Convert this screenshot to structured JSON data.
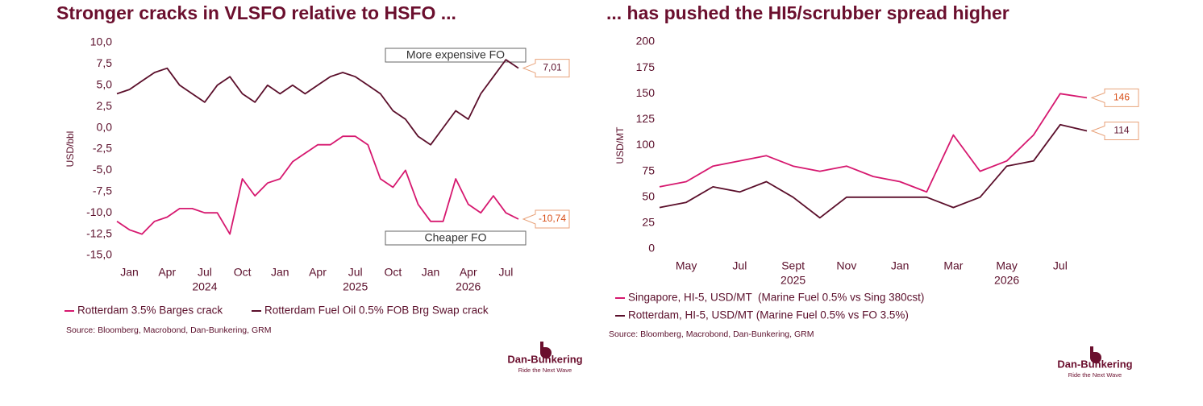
{
  "chart_data": [
    {
      "type": "line",
      "title": "Stronger cracks in VLSFO relative to HSFO ...",
      "y_label": "USD/bbl",
      "x": [
        "2023-12",
        "2024-01",
        "2024-02",
        "2024-03",
        "2024-04",
        "2024-05",
        "2024-06",
        "2024-07",
        "2024-08",
        "2024-09",
        "2024-10",
        "2024-11",
        "2024-12",
        "2025-01",
        "2025-02",
        "2025-03",
        "2025-04",
        "2025-05",
        "2025-06",
        "2025-07",
        "2025-08",
        "2025-09",
        "2025-10",
        "2025-11",
        "2025-12",
        "2026-01",
        "2026-02",
        "2026-03",
        "2026-04",
        "2026-05",
        "2026-06",
        "2026-07",
        "2026-08"
      ],
      "xlim": [
        "2023-12",
        "2026-08"
      ],
      "xticks": [
        {
          "value": "2024-01",
          "label": "Jan"
        },
        {
          "value": "2024-04",
          "label": "Apr"
        },
        {
          "value": "2024-07",
          "label": "Jul"
        },
        {
          "value": "2024-10",
          "label": "Oct"
        },
        {
          "value": "2025-01",
          "label": "Jan"
        },
        {
          "value": "2025-04",
          "label": "Apr"
        },
        {
          "value": "2025-07",
          "label": "Jul"
        },
        {
          "value": "2025-10",
          "label": "Oct"
        },
        {
          "value": "2026-01",
          "label": "Jan"
        },
        {
          "value": "2026-04",
          "label": "Apr"
        },
        {
          "value": "2026-07",
          "label": "Jul"
        }
      ],
      "year_ticks": [
        {
          "value": "2024-07",
          "label": "2024"
        },
        {
          "value": "2025-07",
          "label": "2025"
        },
        {
          "value": "2026-04",
          "label": "2026"
        }
      ],
      "ylim": [
        -15,
        10
      ],
      "yticks": [
        {
          "value": 10,
          "label": "10,0"
        },
        {
          "value": 7.5,
          "label": "7,5"
        },
        {
          "value": 5,
          "label": "5,0"
        },
        {
          "value": 2.5,
          "label": "2,5"
        },
        {
          "value": 0,
          "label": "0,0"
        },
        {
          "value": -2.5,
          "label": "-2,5"
        },
        {
          "value": -5,
          "label": "-5,0"
        },
        {
          "value": -7.5,
          "label": "-7,5"
        },
        {
          "value": -10,
          "label": "-10,0"
        },
        {
          "value": -12.5,
          "label": "-12,5"
        },
        {
          "value": -15,
          "label": "-15,0"
        }
      ],
      "annotations": [
        "More expensive FO",
        "Cheaper FO"
      ],
      "series": [
        {
          "name": "Rotterdam 3.5% Barges crack",
          "color": "#d6186f",
          "label_color": "#d8501a",
          "last_label": "-10,74",
          "values": [
            -11,
            -12,
            -12.5,
            -11,
            -10.5,
            -9.5,
            -9.5,
            -10,
            -10,
            -12.5,
            -6,
            -8,
            -6.5,
            -6,
            -4,
            -3,
            -2,
            -2,
            -1,
            -1,
            -2,
            -6,
            -7,
            -5,
            -9,
            -11,
            -11,
            -6,
            -9,
            -10,
            -8,
            -10,
            -10.74
          ]
        },
        {
          "name": "Rotterdam Fuel Oil 0.5% FOB Brg Swap crack",
          "color": "#5b0f2b",
          "label_color": "#5b0f2b",
          "last_label": "7,01",
          "values": [
            4,
            4.5,
            5.5,
            6.5,
            7,
            5,
            4,
            3,
            5,
            6,
            4,
            3,
            5,
            4,
            5,
            4,
            5,
            6,
            6.5,
            6,
            5,
            4,
            2,
            1,
            -1,
            -2,
            0,
            2,
            1,
            4,
            6,
            8,
            7.01
          ]
        }
      ],
      "source": "Source: Bloomberg, Macrobond, Dan-Bunkering, GRM",
      "logo": {
        "name": "Dan-Bunkering",
        "tagline": "Ride the Next Wave"
      }
    },
    {
      "type": "line",
      "title": "... has pushed the HI5/scrubber spread higher",
      "y_label": "USD/MT",
      "x": [
        "2025-04",
        "2025-05",
        "2025-06",
        "2025-07",
        "2025-08",
        "2025-09",
        "2025-10",
        "2025-11",
        "2025-12",
        "2026-01",
        "2026-02",
        "2026-03",
        "2026-04",
        "2026-05",
        "2026-06",
        "2026-07",
        "2026-08"
      ],
      "xlim": [
        "2025-04",
        "2026-08"
      ],
      "xticks": [
        {
          "value": "2025-05",
          "label": "May"
        },
        {
          "value": "2025-07",
          "label": "Jul"
        },
        {
          "value": "2025-09",
          "label": "Sept"
        },
        {
          "value": "2025-11",
          "label": "Nov"
        },
        {
          "value": "2026-01",
          "label": "Jan"
        },
        {
          "value": "2026-03",
          "label": "Mar"
        },
        {
          "value": "2026-05",
          "label": "May"
        },
        {
          "value": "2026-07",
          "label": "Jul"
        }
      ],
      "year_ticks": [
        {
          "value": "2025-09",
          "label": "2025"
        },
        {
          "value": "2026-05",
          "label": "2026"
        }
      ],
      "ylim": [
        0,
        200
      ],
      "yticks": [
        0,
        25,
        50,
        75,
        100,
        125,
        150,
        175,
        200
      ],
      "series": [
        {
          "name": "Singapore, HI-5, USD/MT  (Marine Fuel 0.5% vs Sing 380cst)",
          "color": "#d6186f",
          "label_color": "#d8501a",
          "values": [
            60,
            65,
            80,
            85,
            90,
            80,
            75,
            80,
            70,
            65,
            55,
            110,
            75,
            85,
            110,
            150,
            146
          ]
        },
        {
          "name": "Rotterdam, HI-5, USD/MT (Marine Fuel 0.5% vs FO 3.5%)",
          "color": "#5b0f2b",
          "label_color": "#5b0f2b",
          "values": [
            40,
            45,
            60,
            55,
            65,
            50,
            30,
            50,
            50,
            50,
            50,
            40,
            50,
            80,
            85,
            120,
            114
          ]
        }
      ],
      "source": "Source: Bloomberg, Macrobond, Dan-Bunkering, GRM",
      "logo": {
        "name": "Dan-Bunkering",
        "tagline": "Ride the Next Wave"
      }
    }
  ]
}
